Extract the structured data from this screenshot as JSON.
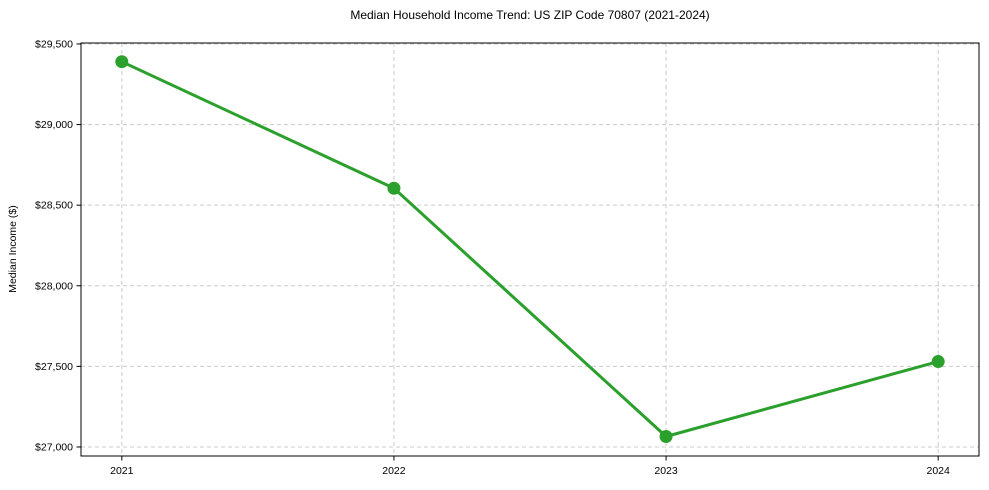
{
  "chart_data": {
    "type": "line",
    "title": "Median Household Income Trend: US ZIP Code 70807 (2021-2024)",
    "xlabel": "",
    "ylabel": "Median Income ($)",
    "x": [
      2021,
      2022,
      2023,
      2024
    ],
    "x_tick_labels": [
      "2021",
      "2022",
      "2023",
      "2024"
    ],
    "series": [
      {
        "name": "Median Household Income",
        "values": [
          29390,
          28605,
          27065,
          27530
        ],
        "color": "#2ca02c"
      }
    ],
    "y_ticks": [
      {
        "value": 27000,
        "label": "$27,000"
      },
      {
        "value": 27500,
        "label": "$27,500"
      },
      {
        "value": 28000,
        "label": "$28,000"
      },
      {
        "value": 28500,
        "label": "$28,500"
      },
      {
        "value": 29000,
        "label": "$29,000"
      },
      {
        "value": 29500,
        "label": "$29,500"
      }
    ],
    "ylim": [
      26944,
      29506
    ],
    "xlim": [
      2020.85,
      2024.15
    ],
    "grid": true,
    "grid_style": "dashed",
    "legend": "none",
    "colors": {
      "line": "#2ca02c",
      "marker": "#2ca02c",
      "grid": "#cccccc",
      "spine": "#000000",
      "background": "#ffffff",
      "text": "#000000"
    }
  }
}
